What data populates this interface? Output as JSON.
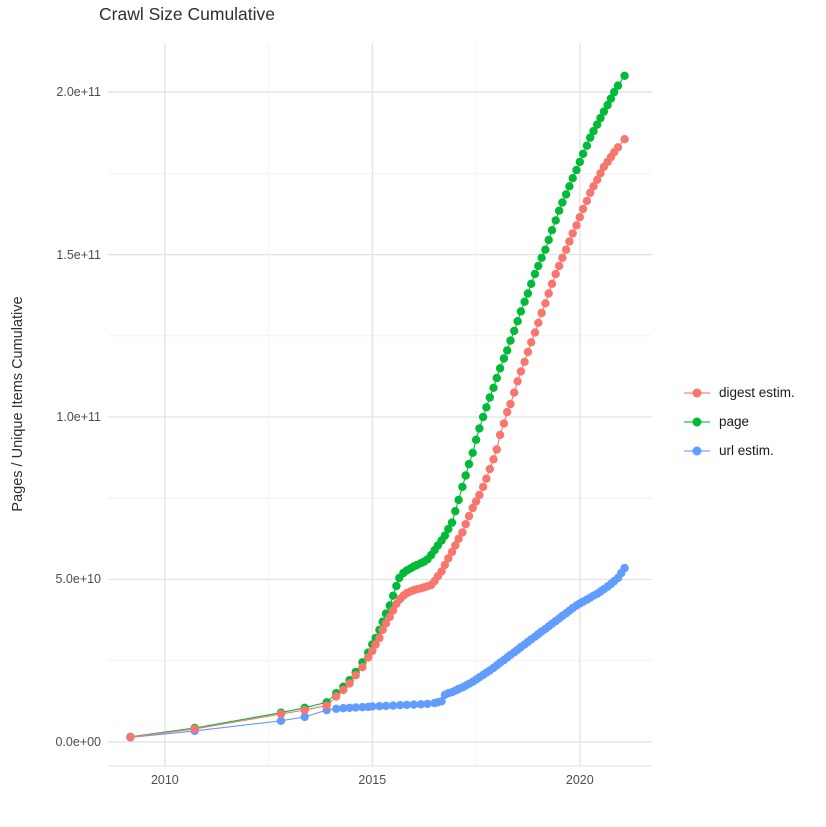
{
  "chart": {
    "title": "Crawl Size Cumulative",
    "ylabel": "Pages / Unique Items Cumulative",
    "xlabel": ""
  },
  "legend": {
    "items": [
      {
        "label": "digest estim.",
        "color": "#F8766D"
      },
      {
        "label": "page",
        "color": "#00BA38"
      },
      {
        "label": "url estim.",
        "color": "#619CFF"
      }
    ]
  },
  "colors": {
    "grid_major": "#e3e3e3",
    "grid_minor": "#f1f1f1",
    "axis_line": "#e0e0e0",
    "tick_text": "#4d4d4d"
  },
  "chart_data": {
    "type": "scatter",
    "title": "Crawl Size Cumulative",
    "xlabel": "",
    "ylabel": "Pages / Unique Items Cumulative",
    "value_unit": "1e9 (billions); y tick labels shown in scientific notation",
    "xlim": [
      2008.63,
      2021.74
    ],
    "ylim_e9": [
      -7.4,
      215.1
    ],
    "x_ticks": [
      2010,
      2015,
      2020
    ],
    "x_tick_labels": [
      "2010",
      "2015",
      "2020"
    ],
    "x_minor_ticks": [
      2012.5,
      2017.5
    ],
    "y_ticks_e9": [
      0,
      50,
      100,
      150,
      200
    ],
    "y_tick_labels": [
      "0.0e+00",
      "5.0e+10",
      "1.0e+11",
      "1.5e+11",
      "2.0e+11"
    ],
    "y_minor_ticks_e9": [
      25,
      75,
      125,
      175
    ],
    "grid": true,
    "legend_position": "right",
    "draw_order": [
      1,
      2,
      0
    ],
    "series": [
      {
        "name": "digest estim.",
        "color": "#F8766D",
        "points": [
          [
            2009.17,
            1.5
          ],
          [
            2010.72,
            4.0
          ],
          [
            2012.8,
            8.6
          ],
          [
            2013.37,
            9.8
          ],
          [
            2013.9,
            11.2
          ],
          [
            2014.13,
            14
          ],
          [
            2014.3,
            16
          ],
          [
            2014.45,
            18
          ],
          [
            2014.6,
            20.5
          ],
          [
            2014.76,
            23
          ],
          [
            2014.9,
            26
          ],
          [
            2015.0,
            28
          ],
          [
            2015.08,
            30
          ],
          [
            2015.17,
            32
          ],
          [
            2015.25,
            34.5
          ],
          [
            2015.33,
            36.5
          ],
          [
            2015.42,
            38.5
          ],
          [
            2015.5,
            40.5
          ],
          [
            2015.58,
            42.5
          ],
          [
            2015.67,
            44
          ],
          [
            2015.75,
            45
          ],
          [
            2015.83,
            45.8
          ],
          [
            2015.92,
            46.3
          ],
          [
            2016.0,
            46.7
          ],
          [
            2016.08,
            47
          ],
          [
            2016.17,
            47.3
          ],
          [
            2016.25,
            47.6
          ],
          [
            2016.33,
            47.9
          ],
          [
            2016.42,
            48.3
          ],
          [
            2016.5,
            49.5
          ],
          [
            2016.58,
            51
          ],
          [
            2016.67,
            52.5
          ],
          [
            2016.75,
            54.5
          ],
          [
            2016.83,
            56.5
          ],
          [
            2016.92,
            58.5
          ],
          [
            2017.0,
            60.5
          ],
          [
            2017.08,
            62.5
          ],
          [
            2017.17,
            64.5
          ],
          [
            2017.25,
            67
          ],
          [
            2017.33,
            69.5
          ],
          [
            2017.42,
            72
          ],
          [
            2017.5,
            74
          ],
          [
            2017.58,
            76
          ],
          [
            2017.67,
            78.5
          ],
          [
            2017.75,
            81
          ],
          [
            2017.83,
            84
          ],
          [
            2017.92,
            87
          ],
          [
            2018.0,
            90
          ],
          [
            2018.08,
            94.5
          ],
          [
            2018.17,
            98
          ],
          [
            2018.25,
            101.5
          ],
          [
            2018.33,
            104
          ],
          [
            2018.42,
            107.5
          ],
          [
            2018.5,
            111
          ],
          [
            2018.58,
            114
          ],
          [
            2018.67,
            117
          ],
          [
            2018.75,
            120
          ],
          [
            2018.83,
            123
          ],
          [
            2018.92,
            126
          ],
          [
            2019.0,
            129
          ],
          [
            2019.08,
            132
          ],
          [
            2019.17,
            135
          ],
          [
            2019.25,
            138
          ],
          [
            2019.33,
            141
          ],
          [
            2019.42,
            144
          ],
          [
            2019.5,
            146.5
          ],
          [
            2019.58,
            149
          ],
          [
            2019.67,
            151.5
          ],
          [
            2019.75,
            154
          ],
          [
            2019.83,
            156.5
          ],
          [
            2019.92,
            159
          ],
          [
            2020.0,
            161.5
          ],
          [
            2020.08,
            164
          ],
          [
            2020.17,
            166.5
          ],
          [
            2020.25,
            169
          ],
          [
            2020.33,
            171
          ],
          [
            2020.42,
            173
          ],
          [
            2020.5,
            175
          ],
          [
            2020.58,
            177
          ],
          [
            2020.67,
            178.5
          ],
          [
            2020.75,
            180
          ],
          [
            2020.83,
            181.5
          ],
          [
            2020.92,
            183
          ],
          [
            2021.08,
            185.5
          ]
        ]
      },
      {
        "name": "page",
        "color": "#00BA38",
        "points": [
          [
            2009.17,
            1.6
          ],
          [
            2010.72,
            4.3
          ],
          [
            2012.8,
            9.0
          ],
          [
            2013.37,
            10.5
          ],
          [
            2013.9,
            12.2
          ],
          [
            2014.13,
            15
          ],
          [
            2014.3,
            17
          ],
          [
            2014.45,
            19
          ],
          [
            2014.6,
            21.5
          ],
          [
            2014.76,
            24.5
          ],
          [
            2014.9,
            27.5
          ],
          [
            2015.0,
            30
          ],
          [
            2015.08,
            32
          ],
          [
            2015.17,
            34.5
          ],
          [
            2015.25,
            37
          ],
          [
            2015.33,
            39.5
          ],
          [
            2015.42,
            42
          ],
          [
            2015.5,
            45
          ],
          [
            2015.58,
            48
          ],
          [
            2015.65,
            50.5
          ],
          [
            2015.75,
            52
          ],
          [
            2015.83,
            52.8
          ],
          [
            2015.92,
            53.4
          ],
          [
            2016.0,
            54
          ],
          [
            2016.08,
            54.5
          ],
          [
            2016.17,
            55
          ],
          [
            2016.25,
            55.5
          ],
          [
            2016.33,
            56.2
          ],
          [
            2016.42,
            57.5
          ],
          [
            2016.5,
            59
          ],
          [
            2016.58,
            60.5
          ],
          [
            2016.67,
            62
          ],
          [
            2016.75,
            63.5
          ],
          [
            2016.83,
            65.5
          ],
          [
            2016.92,
            67.5
          ],
          [
            2017.0,
            71
          ],
          [
            2017.08,
            74.5
          ],
          [
            2017.17,
            78.5
          ],
          [
            2017.25,
            82
          ],
          [
            2017.33,
            85.5
          ],
          [
            2017.42,
            89
          ],
          [
            2017.5,
            93
          ],
          [
            2017.58,
            96.5
          ],
          [
            2017.67,
            100
          ],
          [
            2017.75,
            103
          ],
          [
            2017.83,
            106
          ],
          [
            2017.92,
            109
          ],
          [
            2018.0,
            112
          ],
          [
            2018.08,
            115
          ],
          [
            2018.17,
            118
          ],
          [
            2018.25,
            120.5
          ],
          [
            2018.33,
            123.5
          ],
          [
            2018.42,
            126.5
          ],
          [
            2018.5,
            129.5
          ],
          [
            2018.58,
            132.5
          ],
          [
            2018.67,
            135.5
          ],
          [
            2018.75,
            138
          ],
          [
            2018.83,
            141
          ],
          [
            2018.92,
            144
          ],
          [
            2019.0,
            146.5
          ],
          [
            2019.08,
            149
          ],
          [
            2019.17,
            151.5
          ],
          [
            2019.25,
            154.5
          ],
          [
            2019.33,
            157.5
          ],
          [
            2019.42,
            160.5
          ],
          [
            2019.5,
            163.5
          ],
          [
            2019.58,
            166
          ],
          [
            2019.67,
            168.5
          ],
          [
            2019.75,
            171
          ],
          [
            2019.83,
            173.5
          ],
          [
            2019.92,
            176
          ],
          [
            2020.0,
            178.5
          ],
          [
            2020.08,
            181
          ],
          [
            2020.17,
            183.5
          ],
          [
            2020.25,
            186
          ],
          [
            2020.33,
            188
          ],
          [
            2020.42,
            190
          ],
          [
            2020.5,
            192
          ],
          [
            2020.58,
            194
          ],
          [
            2020.67,
            196
          ],
          [
            2020.75,
            198
          ],
          [
            2020.83,
            200
          ],
          [
            2020.92,
            202
          ],
          [
            2021.08,
            205
          ]
        ]
      },
      {
        "name": "url estim.",
        "color": "#619CFF",
        "points": [
          [
            2009.17,
            1.4
          ],
          [
            2010.72,
            3.4
          ],
          [
            2012.8,
            6.5
          ],
          [
            2013.37,
            7.7
          ],
          [
            2013.9,
            9.8
          ],
          [
            2014.13,
            10.2
          ],
          [
            2014.3,
            10.4
          ],
          [
            2014.45,
            10.5
          ],
          [
            2014.6,
            10.6
          ],
          [
            2014.76,
            10.7
          ],
          [
            2014.9,
            10.8
          ],
          [
            2015.0,
            10.9
          ],
          [
            2015.17,
            11.0
          ],
          [
            2015.33,
            11.1
          ],
          [
            2015.5,
            11.2
          ],
          [
            2015.67,
            11.3
          ],
          [
            2015.83,
            11.4
          ],
          [
            2016.0,
            11.5
          ],
          [
            2016.17,
            11.6
          ],
          [
            2016.33,
            11.7
          ],
          [
            2016.5,
            12.0
          ],
          [
            2016.58,
            12.2
          ],
          [
            2016.67,
            12.5
          ],
          [
            2016.75,
            14.5
          ],
          [
            2016.83,
            15.0
          ],
          [
            2016.92,
            15.3
          ],
          [
            2017.0,
            15.8
          ],
          [
            2017.08,
            16.3
          ],
          [
            2017.17,
            16.8
          ],
          [
            2017.25,
            17.3
          ],
          [
            2017.33,
            17.9
          ],
          [
            2017.42,
            18.5
          ],
          [
            2017.5,
            19.2
          ],
          [
            2017.58,
            19.9
          ],
          [
            2017.67,
            20.6
          ],
          [
            2017.75,
            21.3
          ],
          [
            2017.83,
            22.0
          ],
          [
            2017.92,
            22.8
          ],
          [
            2018.0,
            23.6
          ],
          [
            2018.08,
            24.4
          ],
          [
            2018.17,
            25.2
          ],
          [
            2018.25,
            26.0
          ],
          [
            2018.33,
            26.8
          ],
          [
            2018.42,
            27.6
          ],
          [
            2018.5,
            28.4
          ],
          [
            2018.58,
            29.2
          ],
          [
            2018.67,
            30.0
          ],
          [
            2018.75,
            30.8
          ],
          [
            2018.83,
            31.6
          ],
          [
            2018.92,
            32.4
          ],
          [
            2019.0,
            33.2
          ],
          [
            2019.08,
            34.0
          ],
          [
            2019.17,
            34.8
          ],
          [
            2019.25,
            35.6
          ],
          [
            2019.33,
            36.4
          ],
          [
            2019.42,
            37.2
          ],
          [
            2019.5,
            38.0
          ],
          [
            2019.58,
            38.8
          ],
          [
            2019.67,
            39.6
          ],
          [
            2019.75,
            40.4
          ],
          [
            2019.83,
            41.2
          ],
          [
            2019.92,
            42.0
          ],
          [
            2020.0,
            42.6
          ],
          [
            2020.08,
            43.2
          ],
          [
            2020.17,
            43.8
          ],
          [
            2020.25,
            44.4
          ],
          [
            2020.33,
            45.0
          ],
          [
            2020.42,
            45.6
          ],
          [
            2020.5,
            46.3
          ],
          [
            2020.58,
            47.0
          ],
          [
            2020.67,
            47.8
          ],
          [
            2020.75,
            48.6
          ],
          [
            2020.83,
            49.5
          ],
          [
            2020.92,
            50.5
          ],
          [
            2021.0,
            52
          ],
          [
            2021.08,
            53.5
          ]
        ]
      }
    ]
  }
}
